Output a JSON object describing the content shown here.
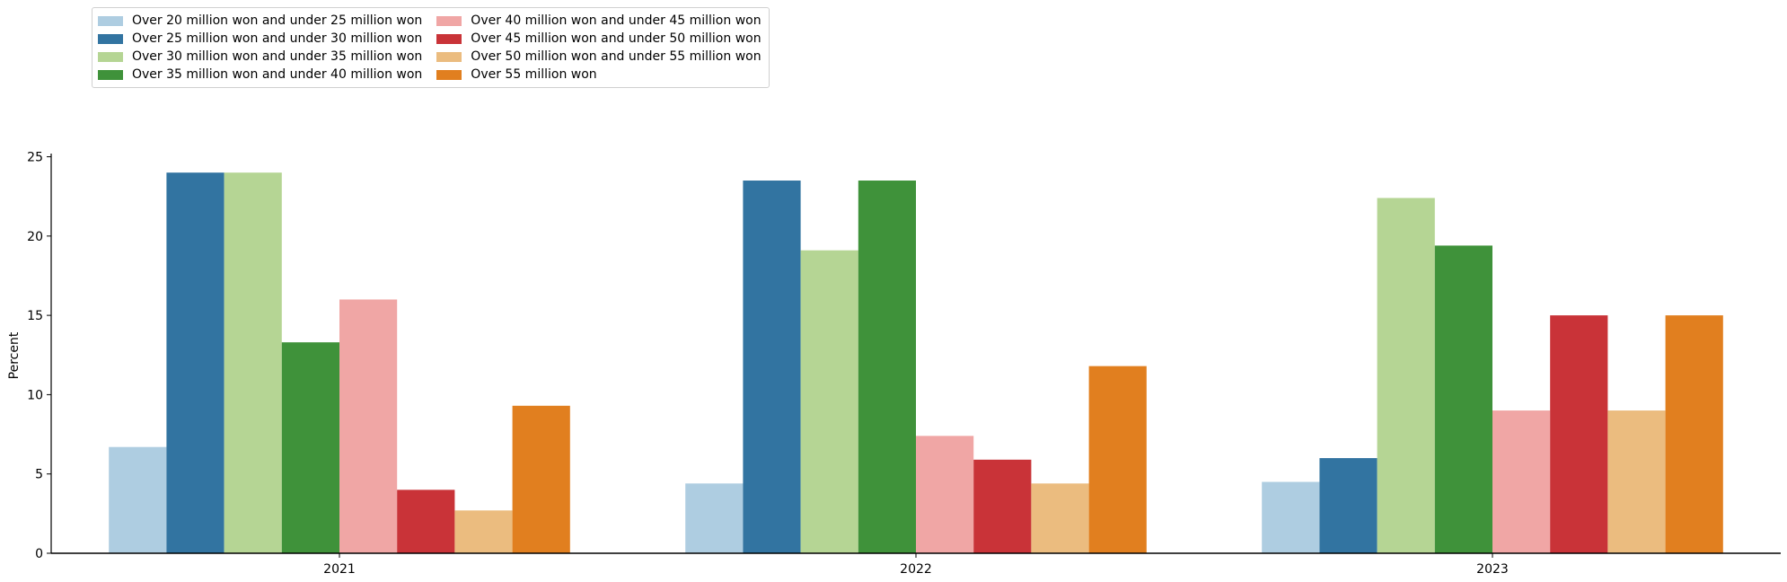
{
  "chart_data": {
    "type": "bar",
    "title": "",
    "xlabel": "",
    "ylabel": "Percent",
    "categories": [
      "2021",
      "2022",
      "2023"
    ],
    "ylim": [
      0,
      25.2
    ],
    "yticks": [
      0,
      5,
      10,
      15,
      20,
      25
    ],
    "legend_position": "top-left",
    "grid": false,
    "series": [
      {
        "name": "Over 20 million won and under 25 million won",
        "color": "#aecde1",
        "values": [
          6.7,
          4.4,
          4.5
        ]
      },
      {
        "name": "Over 25 million won and under 30 million won",
        "color": "#3274a1",
        "values": [
          24.0,
          23.5,
          6.0
        ]
      },
      {
        "name": "Over 30 million won and under 35 million won",
        "color": "#b5d594",
        "values": [
          24.0,
          19.1,
          22.4
        ]
      },
      {
        "name": "Over 35 million won and under 40 million won",
        "color": "#3f923a",
        "values": [
          13.3,
          23.5,
          19.4
        ]
      },
      {
        "name": "Over 40 million won and under 45 million won",
        "color": "#f0a6a5",
        "values": [
          16.0,
          7.4,
          9.0
        ]
      },
      {
        "name": "Over 45 million won and under 50 million won",
        "color": "#c93338",
        "values": [
          4.0,
          5.9,
          15.0
        ]
      },
      {
        "name": "Over 50 million won and under 55 million won",
        "color": "#ebbc7f",
        "values": [
          2.7,
          4.4,
          9.0
        ]
      },
      {
        "name": "Over 55 million won",
        "color": "#e17f1f",
        "values": [
          9.3,
          11.8,
          15.0
        ]
      }
    ]
  }
}
